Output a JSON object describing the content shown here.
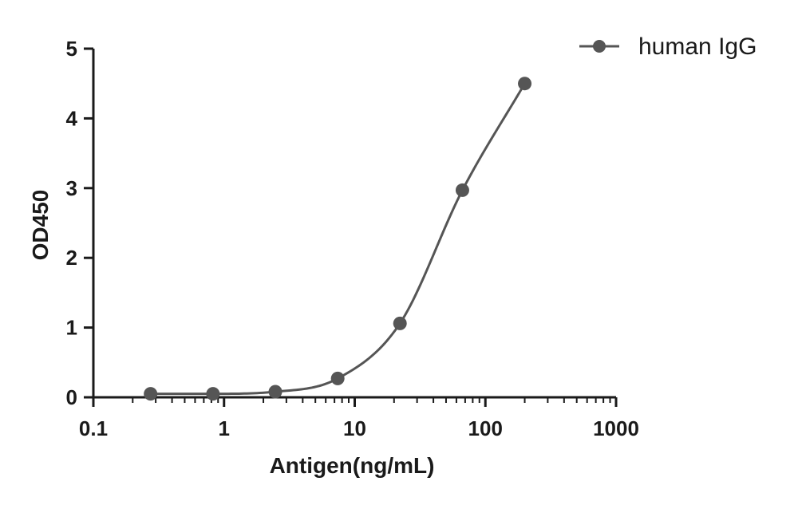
{
  "chart_data": {
    "type": "scatter",
    "x_scale": "log",
    "xlabel": "Antigen(ng/mL)",
    "ylabel": "OD450",
    "xlim": [
      0.1,
      1000
    ],
    "ylim": [
      0,
      5
    ],
    "x_ticks": [
      0.1,
      1,
      10,
      100,
      1000
    ],
    "x_tick_labels": [
      "0.1",
      "1",
      "10",
      "100",
      "1000"
    ],
    "y_ticks": [
      0,
      1,
      2,
      3,
      4,
      5
    ],
    "y_tick_labels": [
      "0",
      "1",
      "2",
      "3",
      "4",
      "5"
    ],
    "grid": false,
    "legend_position": "top-right",
    "fit": "sigmoidal",
    "series": [
      {
        "name": "human IgG",
        "color": "#555555",
        "x": [
          0.274,
          0.823,
          2.47,
          7.41,
          22.2,
          66.7,
          200
        ],
        "y": [
          0.05,
          0.05,
          0.08,
          0.27,
          1.06,
          2.97,
          4.5
        ]
      }
    ]
  }
}
